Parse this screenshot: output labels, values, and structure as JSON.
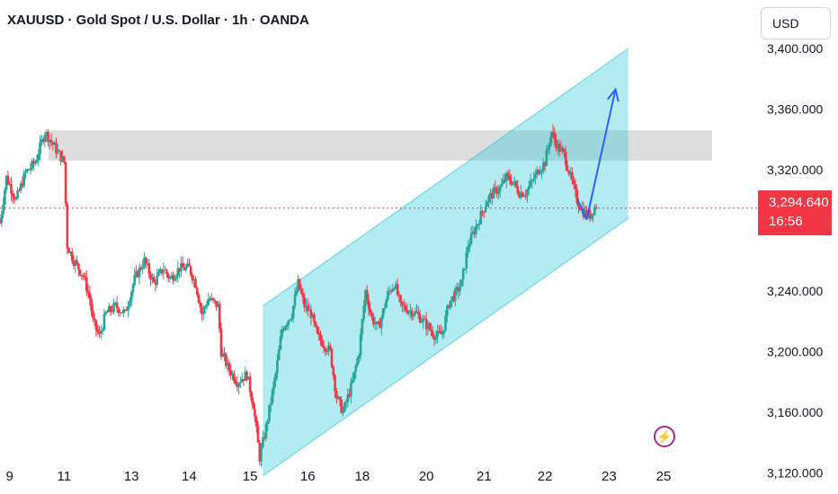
{
  "header": {
    "title": "XAUUSD · Gold Spot / U.S. Dollar · 1h · OANDA"
  },
  "toolbar": {
    "currency_label": "USD"
  },
  "price_tag": {
    "price": "3,294.640",
    "countdown": "16:56"
  },
  "icons": {
    "flash": "flash-icon"
  },
  "colors": {
    "up": "#26a69a",
    "down": "#f23645",
    "channel": "#26c6da",
    "zone": "#b4b4b4",
    "arrow": "#2962ff",
    "accent": "#b2287d"
  },
  "chart_data": {
    "type": "candlestick",
    "title": "XAUUSD · Gold Spot / U.S. Dollar · 1h · OANDA",
    "y_ticks": [
      "3,400.000",
      "3,360.000",
      "3,320.000",
      "3,240.000",
      "3,200.000",
      "3,160.000",
      "3,120.000"
    ],
    "y_tick_values": [
      3400,
      3360,
      3320,
      3240,
      3200,
      3160,
      3120
    ],
    "ylim": [
      3106,
      3432
    ],
    "x_ticks": [
      "9",
      "11",
      "13",
      "14",
      "15",
      "16",
      "18",
      "20",
      "21",
      "22",
      "23",
      "25"
    ],
    "xlim": [
      0,
      230
    ],
    "x_tick_positions": [
      3,
      20,
      41,
      59,
      78,
      96,
      113,
      133,
      151,
      170,
      190,
      207
    ],
    "current_price": 3294.64,
    "price_path": [
      [
        0,
        3285
      ],
      [
        2,
        3315
      ],
      [
        5,
        3300
      ],
      [
        8,
        3318
      ],
      [
        11,
        3325
      ],
      [
        14,
        3345
      ],
      [
        17,
        3335
      ],
      [
        20,
        3325
      ],
      [
        21,
        3270
      ],
      [
        23,
        3260
      ],
      [
        26,
        3250
      ],
      [
        28,
        3235
      ],
      [
        29,
        3220
      ],
      [
        31,
        3210
      ],
      [
        33,
        3225
      ],
      [
        36,
        3230
      ],
      [
        39,
        3225
      ],
      [
        42,
        3248
      ],
      [
        45,
        3260
      ],
      [
        48,
        3245
      ],
      [
        51,
        3255
      ],
      [
        53,
        3248
      ],
      [
        56,
        3255
      ],
      [
        59,
        3255
      ],
      [
        61,
        3245
      ],
      [
        63,
        3225
      ],
      [
        65,
        3235
      ],
      [
        68,
        3230
      ],
      [
        69,
        3200
      ],
      [
        71,
        3190
      ],
      [
        74,
        3180
      ],
      [
        77,
        3185
      ],
      [
        79,
        3165
      ],
      [
        81,
        3130
      ],
      [
        83,
        3150
      ],
      [
        86,
        3185
      ],
      [
        88,
        3215
      ],
      [
        91,
        3225
      ],
      [
        93,
        3245
      ],
      [
        95,
        3230
      ],
      [
        97,
        3225
      ],
      [
        99,
        3210
      ],
      [
        101,
        3205
      ],
      [
        103,
        3200
      ],
      [
        105,
        3170
      ],
      [
        107,
        3160
      ],
      [
        110,
        3180
      ],
      [
        112,
        3200
      ],
      [
        114,
        3240
      ],
      [
        116,
        3222
      ],
      [
        118,
        3215
      ],
      [
        121,
        3238
      ],
      [
        123,
        3245
      ],
      [
        125,
        3230
      ],
      [
        127,
        3228
      ],
      [
        130,
        3225
      ],
      [
        132,
        3220
      ],
      [
        134,
        3215
      ],
      [
        136,
        3210
      ],
      [
        138,
        3212
      ],
      [
        140,
        3232
      ],
      [
        142,
        3238
      ],
      [
        144,
        3245
      ],
      [
        146,
        3270
      ],
      [
        148,
        3280
      ],
      [
        150,
        3290
      ],
      [
        152,
        3300
      ],
      [
        154,
        3305
      ],
      [
        156,
        3308
      ],
      [
        158,
        3315
      ],
      [
        160,
        3312
      ],
      [
        162,
        3305
      ],
      [
        164,
        3305
      ],
      [
        166,
        3312
      ],
      [
        168,
        3320
      ],
      [
        170,
        3325
      ],
      [
        172,
        3345
      ],
      [
        174,
        3335
      ],
      [
        176,
        3330
      ],
      [
        178,
        3315
      ],
      [
        180,
        3300
      ],
      [
        182,
        3292
      ],
      [
        184,
        3290
      ],
      [
        186,
        3297
      ]
    ],
    "annotations": {
      "resistance_zone": [
        3326,
        3346
      ],
      "channel_upper": [
        [
          82,
          3230
        ],
        [
          196,
          3400
        ]
      ],
      "channel_lower": [
        [
          82,
          3118
        ],
        [
          196,
          3288
        ]
      ],
      "projection_arrow": [
        [
          183,
          3287
        ],
        [
          192,
          3373
        ]
      ]
    }
  }
}
